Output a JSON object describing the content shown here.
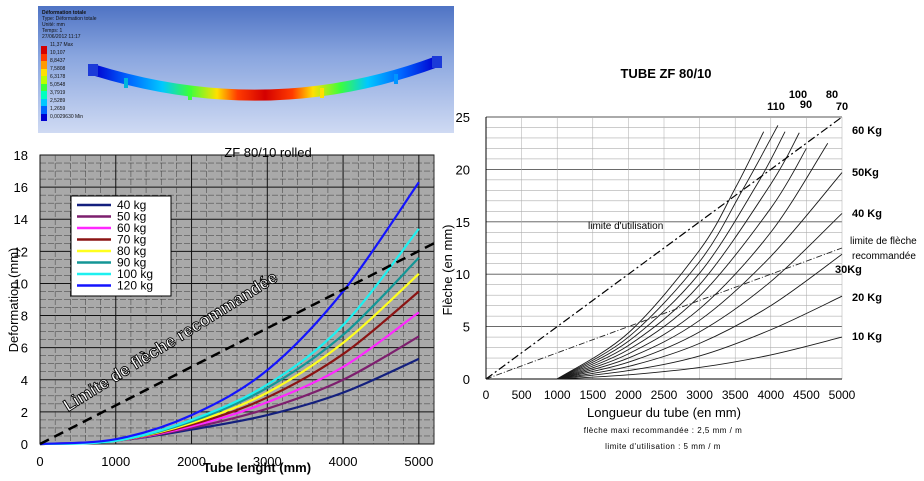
{
  "fea_image": {
    "title": "Déformation totale",
    "lines": [
      "Type: Déformation totale",
      "Unité: mm",
      "Temps: 1",
      "27/06/2012 11:17"
    ],
    "scale_values": [
      "11,37 Max",
      "10,107",
      "8,8437",
      "7,5808",
      "6,3178",
      "5,0548",
      "3,7919",
      "2,5289",
      "1,2659",
      "0,0029630 Min"
    ],
    "scale_colors": [
      "#d40000",
      "#ff3b00",
      "#ff9a00",
      "#ffe000",
      "#b8ff00",
      "#3cff3c",
      "#00ffc0",
      "#00c8ff",
      "#0064ff",
      "#0000d0"
    ]
  },
  "chart_data": [
    {
      "type": "line",
      "title": "ZF 80/10 rolled",
      "xlabel": "Tube lenght (mm)",
      "ylabel": "Deformation (mm)",
      "xlim": [
        0,
        5200
      ],
      "ylim": [
        0,
        18
      ],
      "x_ticks": [
        "0",
        "1000",
        "2000",
        "3000",
        "4000",
        "5000"
      ],
      "y_ticks": [
        "0",
        "2",
        "4",
        "6",
        "8",
        "10",
        "12",
        "14",
        "16",
        "18"
      ],
      "grid": true,
      "legend_position": "top-left",
      "annotation": "Limite de flèche recommandée",
      "series": [
        {
          "name": "40 kg",
          "color": "#14207e",
          "x": [
            0,
            1000,
            2000,
            3000,
            4000,
            5000
          ],
          "y": [
            0,
            0.2,
            0.9,
            1.8,
            3.2,
            5.3
          ]
        },
        {
          "name": "50 kg",
          "color": "#7d1f6e",
          "x": [
            0,
            1000,
            2000,
            3000,
            4000,
            5000
          ],
          "y": [
            0,
            0.2,
            1.0,
            2.2,
            4.0,
            6.7
          ]
        },
        {
          "name": "60 kg",
          "color": "#ff28ff",
          "x": [
            0,
            1000,
            2000,
            3000,
            4000,
            5000
          ],
          "y": [
            0,
            0.2,
            1.1,
            2.6,
            4.8,
            8.2
          ]
        },
        {
          "name": "70 kg",
          "color": "#8b1414",
          "x": [
            0,
            1000,
            2000,
            3000,
            4000,
            5000
          ],
          "y": [
            0,
            0.2,
            1.2,
            2.9,
            5.6,
            9.5
          ]
        },
        {
          "name": "80 kg",
          "color": "#ffff1e",
          "x": [
            0,
            1000,
            2000,
            3000,
            4000,
            5000
          ],
          "y": [
            0,
            0.2,
            1.3,
            3.2,
            6.3,
            10.6
          ]
        },
        {
          "name": "90 kg",
          "color": "#149696",
          "x": [
            0,
            1000,
            2000,
            3000,
            4000,
            5000
          ],
          "y": [
            0,
            0.2,
            1.4,
            3.5,
            6.8,
            11.6
          ]
        },
        {
          "name": "100 kg",
          "color": "#1ef0f0",
          "x": [
            0,
            1000,
            2000,
            3000,
            4000,
            5000
          ],
          "y": [
            0,
            0.2,
            1.5,
            3.7,
            7.4,
            13.4
          ]
        },
        {
          "name": "120 kg",
          "color": "#1414ff",
          "x": [
            0,
            1000,
            2000,
            3000,
            4000,
            5000
          ],
          "y": [
            0,
            0.3,
            1.8,
            4.6,
            9.5,
            16.3
          ]
        }
      ],
      "limit_line": {
        "x": [
          0,
          5200
        ],
        "y": [
          0,
          12.5
        ]
      }
    },
    {
      "type": "line",
      "title": "TUBE ZF 80/10",
      "xlabel": "Longueur du tube (en mm)",
      "ylabel": "Flèche (en mm)",
      "xlim": [
        0,
        5000
      ],
      "ylim": [
        0,
        25
      ],
      "x_ticks": [
        "0",
        "500",
        "1000",
        "1500",
        "2000",
        "2500",
        "3000",
        "3500",
        "4000",
        "4500",
        "5000"
      ],
      "y_ticks": [
        "0",
        "5",
        "10",
        "15",
        "20",
        "25"
      ],
      "grid": true,
      "notes": [
        "flèche maxi recommandée : 2,5 mm / m",
        "limite d'utilisation : 5 mm / m"
      ],
      "annotations": [
        "limite d'utilisation",
        "limite de flèche recommandée"
      ],
      "top_labels": [
        "110",
        "100",
        "90",
        "80",
        "70"
      ],
      "right_labels": [
        "60 Kg",
        "50Kg",
        "40 Kg",
        "30Kg",
        "20 Kg",
        "10 Kg"
      ],
      "series": [
        {
          "name": "10 Kg",
          "x": [
            1000,
            2000,
            3000,
            4000,
            5000
          ],
          "y": [
            0,
            0.4,
            1.1,
            2.3,
            4.0
          ]
        },
        {
          "name": "20 Kg",
          "x": [
            1000,
            2000,
            3000,
            4000,
            5000
          ],
          "y": [
            0,
            0.8,
            2.2,
            4.7,
            7.9
          ]
        },
        {
          "name": "30Kg",
          "x": [
            1000,
            2000,
            3000,
            4000,
            5000
          ],
          "y": [
            0,
            1.2,
            3.4,
            7.0,
            11.9
          ]
        },
        {
          "name": "40 Kg",
          "x": [
            1000,
            2000,
            3000,
            4000,
            5000
          ],
          "y": [
            0,
            1.6,
            4.5,
            9.3,
            15.8
          ]
        },
        {
          "name": "50Kg",
          "x": [
            1000,
            2000,
            3000,
            4000,
            5000
          ],
          "y": [
            0,
            2.0,
            5.6,
            11.7,
            19.7
          ]
        },
        {
          "name": "60 Kg",
          "x": [
            1000,
            2000,
            3000,
            4000,
            4800
          ],
          "y": [
            0,
            2.4,
            6.7,
            14.0,
            22.5
          ]
        },
        {
          "name": "70",
          "x": [
            1000,
            2000,
            3000,
            4000,
            4500
          ],
          "y": [
            0,
            2.8,
            7.9,
            16.3,
            22.0
          ]
        },
        {
          "name": "80",
          "x": [
            1000,
            2000,
            3000,
            4000,
            4400
          ],
          "y": [
            0,
            3.2,
            9.0,
            18.6,
            23.5
          ]
        },
        {
          "name": "90",
          "x": [
            1000,
            2000,
            3000,
            3800,
            4200
          ],
          "y": [
            0,
            3.6,
            10.1,
            18.5,
            23.6
          ]
        },
        {
          "name": "100",
          "x": [
            1000,
            2000,
            3000,
            3600,
            4100
          ],
          "y": [
            0,
            4.0,
            11.2,
            18.0,
            24.2
          ]
        },
        {
          "name": "110",
          "x": [
            1000,
            2000,
            3000,
            3500,
            3900
          ],
          "y": [
            0,
            4.4,
            12.3,
            18.2,
            23.6
          ]
        }
      ],
      "limit_use_line": {
        "x": [
          0,
          5000
        ],
        "y": [
          0,
          25
        ]
      },
      "limit_recommended_line": {
        "x": [
          0,
          5000
        ],
        "y": [
          0,
          12.5
        ]
      }
    }
  ]
}
